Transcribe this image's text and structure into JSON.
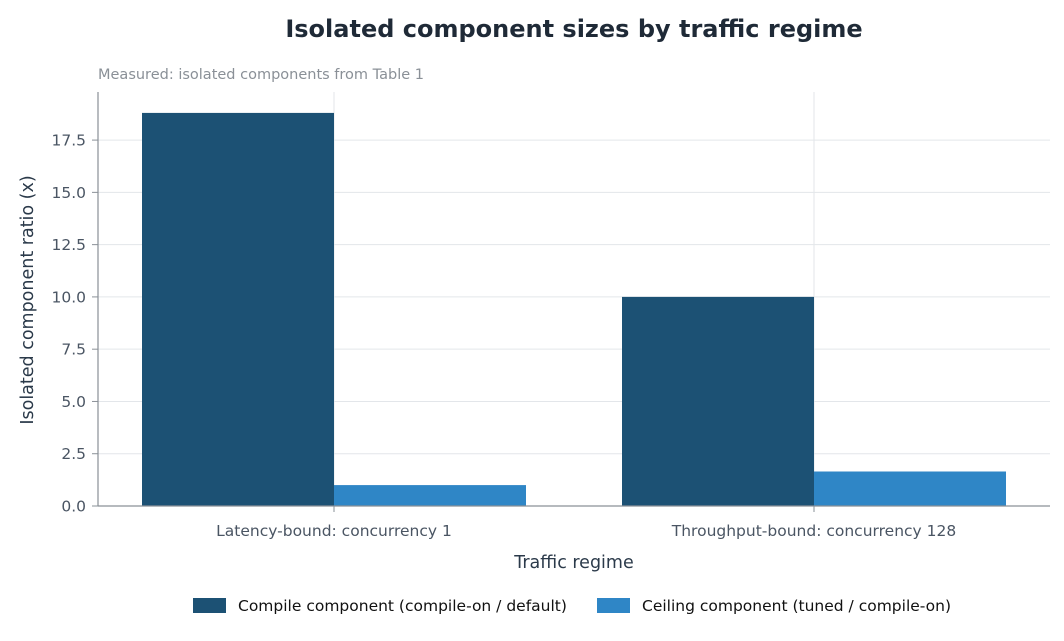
{
  "colors": {
    "compile": "#1c5174",
    "ceiling": "#2f86c6",
    "grid": "#e3e6ea",
    "axis": "#8a9097"
  },
  "chart_data": {
    "type": "bar",
    "title": "Isolated component sizes by traffic regime",
    "subtitle": "Measured: isolated components from Table 1",
    "xlabel": "Traffic regime",
    "ylabel": "Isolated component ratio (x)",
    "categories": [
      "Latency-bound: concurrency 1",
      "Throughput-bound: concurrency 128"
    ],
    "series": [
      {
        "name": "Compile component (compile-on / default)",
        "values": [
          18.8,
          10.0
        ],
        "color": "#1c5174"
      },
      {
        "name": "Ceiling component (tuned / compile-on)",
        "values": [
          1.0,
          1.65
        ],
        "color": "#2f86c6"
      }
    ],
    "ylim": [
      0,
      19.8
    ],
    "yticks": [
      0.0,
      2.5,
      5.0,
      7.5,
      10.0,
      12.5,
      15.0,
      17.5
    ],
    "ytick_labels": [
      "0.0",
      "2.5",
      "5.0",
      "7.5",
      "10.0",
      "12.5",
      "15.0",
      "17.5"
    ],
    "grid": true,
    "legend_position": "bottom-center"
  }
}
